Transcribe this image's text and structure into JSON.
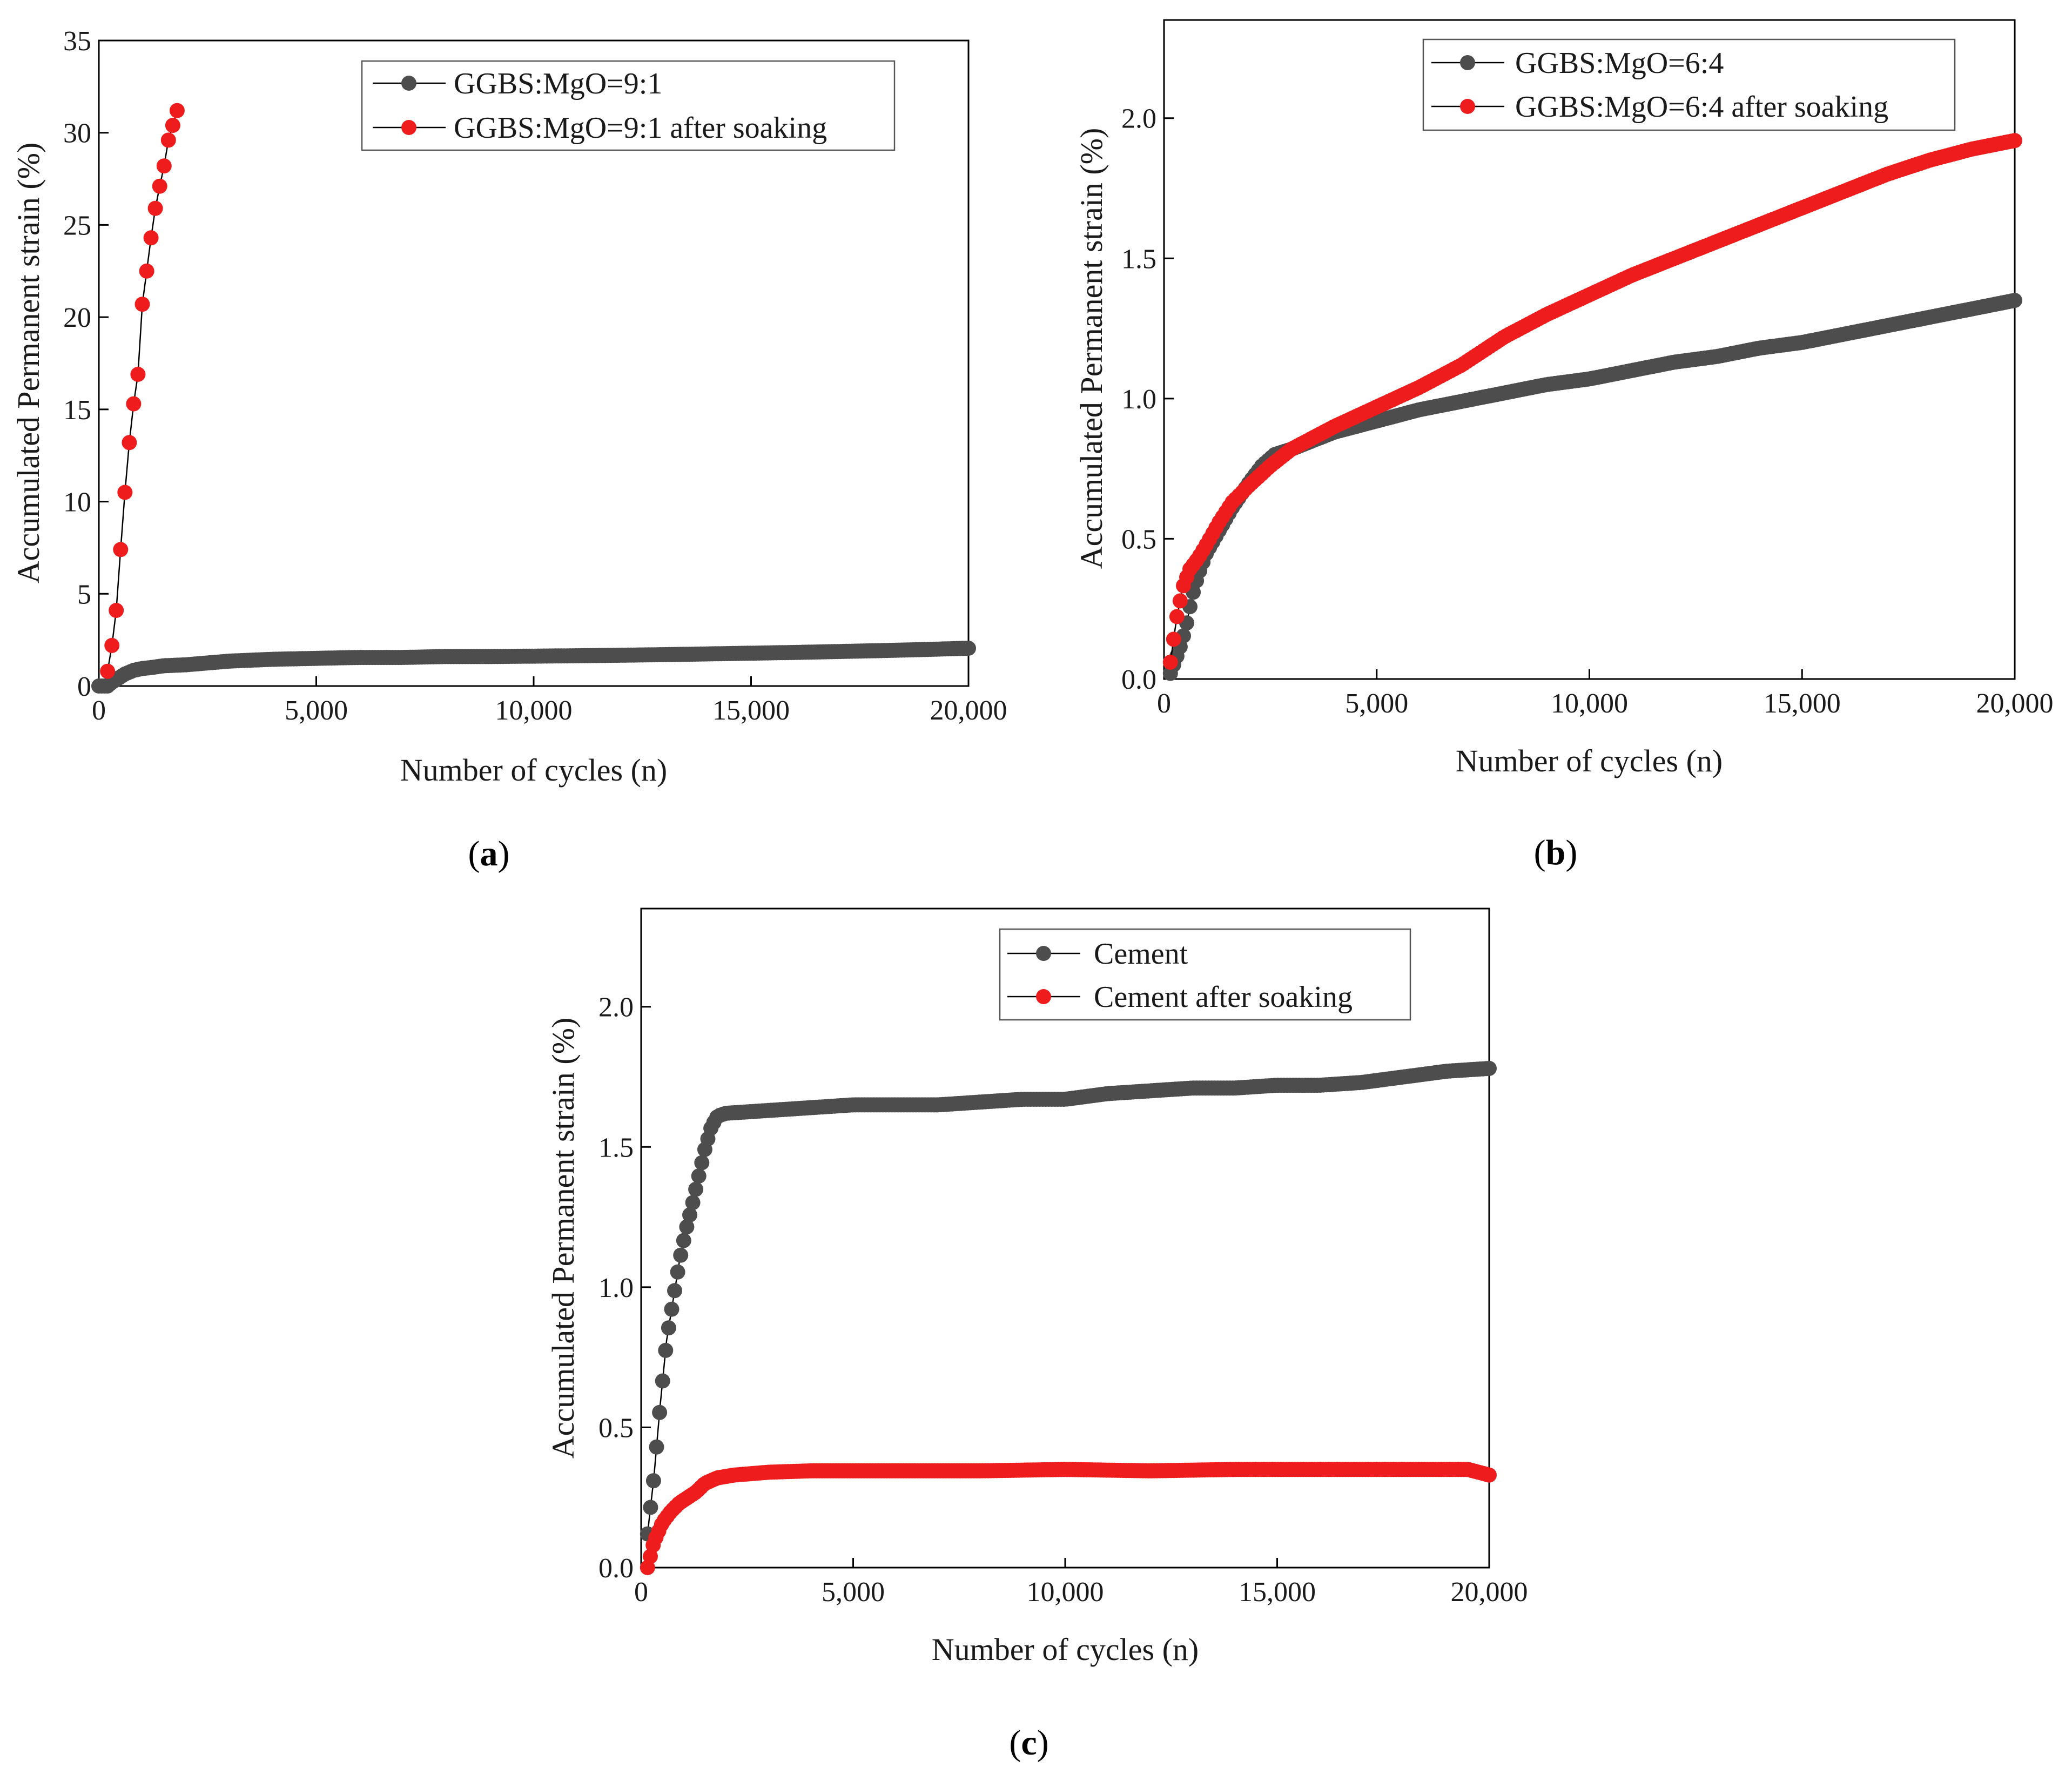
{
  "colors": {
    "dark": "#4d4d4d",
    "red": "#ee1c1c",
    "line": "#000000"
  },
  "chart_data": [
    {
      "type": "line",
      "panel": "a",
      "xlabel": "Number of cycles (n)",
      "ylabel": "Accumulated Permanent strain (%)",
      "xlim": [
        0,
        20000
      ],
      "ylim": [
        0,
        35
      ],
      "xticks": [
        0,
        5000,
        10000,
        15000,
        20000
      ],
      "xtick_labels": [
        "0",
        "5,000",
        "10,000",
        "15,000",
        "20,000"
      ],
      "yticks": [
        0,
        5,
        10,
        15,
        20,
        25,
        30,
        35
      ],
      "ytick_labels": [
        "0",
        "5",
        "10",
        "15",
        "20",
        "25",
        "30",
        "35"
      ],
      "legend_position": "top-right",
      "series": [
        {
          "name": "GGBS:MgO=9:1",
          "color": "dark",
          "x": [
            0,
            200,
            300,
            400,
            500,
            600,
            800,
            1000,
            1200,
            1500,
            2000,
            2500,
            3000,
            3500,
            4000,
            5000,
            6000,
            7000,
            8000,
            9000,
            10000,
            11000,
            12000,
            13000,
            14000,
            15000,
            16000,
            17000,
            18000,
            19000,
            20000
          ],
          "values": [
            0,
            0,
            0.2,
            0.35,
            0.5,
            0.65,
            0.85,
            0.95,
            1.0,
            1.1,
            1.15,
            1.25,
            1.35,
            1.4,
            1.45,
            1.5,
            1.55,
            1.55,
            1.6,
            1.6,
            1.62,
            1.64,
            1.67,
            1.7,
            1.74,
            1.78,
            1.82,
            1.87,
            1.92,
            1.98,
            2.05
          ],
          "density": 300
        },
        {
          "name": "GGBS:MgO=9:1 after soaking",
          "color": "red",
          "x": [
            200,
            300,
            400,
            500,
            600,
            700,
            800,
            900,
            1000,
            1100,
            1200,
            1300,
            1400,
            1500,
            1600,
            1700,
            1800
          ],
          "values": [
            0.8,
            2.2,
            4.1,
            7.4,
            10.5,
            13.2,
            15.3,
            16.9,
            20.7,
            22.5,
            24.3,
            25.9,
            27.1,
            28.2,
            29.6,
            30.4,
            31.2
          ],
          "density": 0
        }
      ]
    },
    {
      "type": "line",
      "panel": "b",
      "xlabel": "Number of cycles (n)",
      "ylabel": "Accumulated Permanent strain (%)",
      "xlim": [
        0,
        20000
      ],
      "ylim": [
        0,
        2.35
      ],
      "xticks": [
        0,
        5000,
        10000,
        15000,
        20000
      ],
      "xtick_labels": [
        "0",
        "5,000",
        "10,000",
        "15,000",
        "20,000"
      ],
      "yticks": [
        0,
        0.5,
        1.0,
        1.5,
        2.0
      ],
      "ytick_labels": [
        "0.0",
        "0.5",
        "1.0",
        "1.5",
        "2.0"
      ],
      "legend_position": "top-right",
      "series": [
        {
          "name": "GGBS:MgO=6:4",
          "color": "dark",
          "x": [
            150,
            250,
            350,
            450,
            550,
            650,
            800,
            1000,
            1300,
            1600,
            2000,
            2300,
            2600,
            3000,
            3500,
            4000,
            5000,
            6000,
            7000,
            8000,
            9000,
            10000,
            11000,
            12000,
            13000,
            14000,
            15000,
            16000,
            17000,
            18000,
            19000,
            20000
          ],
          "values": [
            0.02,
            0.06,
            0.1,
            0.15,
            0.21,
            0.29,
            0.37,
            0.45,
            0.53,
            0.61,
            0.7,
            0.76,
            0.8,
            0.82,
            0.85,
            0.88,
            0.92,
            0.96,
            0.99,
            1.02,
            1.05,
            1.07,
            1.1,
            1.13,
            1.15,
            1.18,
            1.2,
            1.23,
            1.26,
            1.29,
            1.32,
            1.35
          ],
          "density": 260
        },
        {
          "name": "GGBS:MgO=6:4 after soaking",
          "color": "red",
          "x": [
            150,
            300,
            450,
            600,
            800,
            1000,
            1300,
            1600,
            2000,
            2500,
            3000,
            3500,
            4000,
            5000,
            6000,
            7000,
            8000,
            9000,
            10000,
            11000,
            12000,
            13000,
            14000,
            15000,
            16000,
            17000,
            18000,
            19000,
            20000
          ],
          "values": [
            0.06,
            0.22,
            0.33,
            0.39,
            0.43,
            0.48,
            0.56,
            0.63,
            0.69,
            0.76,
            0.82,
            0.86,
            0.9,
            0.97,
            1.04,
            1.12,
            1.22,
            1.3,
            1.37,
            1.44,
            1.5,
            1.56,
            1.62,
            1.68,
            1.74,
            1.8,
            1.85,
            1.89,
            1.92
          ],
          "density": 260
        }
      ]
    },
    {
      "type": "line",
      "panel": "c",
      "xlabel": "Number of cycles (n)",
      "ylabel": "Accumulated Permanent strain (%)",
      "xlim": [
        0,
        20000
      ],
      "ylim": [
        0,
        2.35
      ],
      "xticks": [
        0,
        5000,
        10000,
        15000,
        20000
      ],
      "xtick_labels": [
        "0",
        "5,000",
        "10,000",
        "15,000",
        "20,000"
      ],
      "yticks": [
        0,
        0.5,
        1.0,
        1.5,
        2.0
      ],
      "ytick_labels": [
        "0.0",
        "0.5",
        "1.0",
        "1.5",
        "2.0"
      ],
      "legend_position": "top-right",
      "series": [
        {
          "name": "Cement",
          "color": "dark",
          "x": [
            150,
            300,
            450,
            600,
            750,
            900,
            1050,
            1200,
            1350,
            1500,
            1650,
            1800,
            2000,
            3000,
            4000,
            5000,
            6000,
            7000,
            8000,
            9000,
            10000,
            11000,
            12000,
            13000,
            14000,
            15000,
            16000,
            17000,
            18000,
            19000,
            20000
          ],
          "values": [
            0.12,
            0.32,
            0.58,
            0.81,
            0.95,
            1.09,
            1.2,
            1.29,
            1.39,
            1.49,
            1.57,
            1.61,
            1.62,
            1.63,
            1.64,
            1.65,
            1.65,
            1.65,
            1.66,
            1.67,
            1.67,
            1.69,
            1.7,
            1.71,
            1.71,
            1.72,
            1.72,
            1.73,
            1.75,
            1.77,
            1.78
          ],
          "density": 280
        },
        {
          "name": "Cement after soaking",
          "color": "red",
          "x": [
            150,
            300,
            500,
            700,
            900,
            1100,
            1300,
            1500,
            1800,
            2200,
            2600,
            3000,
            4000,
            5000,
            6000,
            8000,
            10000,
            12000,
            14000,
            16000,
            18000,
            19500,
            20000
          ],
          "values": [
            0.0,
            0.09,
            0.16,
            0.2,
            0.23,
            0.25,
            0.27,
            0.3,
            0.32,
            0.33,
            0.335,
            0.34,
            0.345,
            0.345,
            0.345,
            0.345,
            0.35,
            0.345,
            0.35,
            0.35,
            0.35,
            0.35,
            0.33
          ],
          "density": 300
        }
      ]
    }
  ],
  "panel_labels": {
    "a": {
      "letter": "a",
      "open": "(",
      "close": ")"
    },
    "b": {
      "letter": "b",
      "open": "(",
      "close": ")"
    },
    "c": {
      "letter": "c",
      "open": "(",
      "close": ")"
    }
  }
}
